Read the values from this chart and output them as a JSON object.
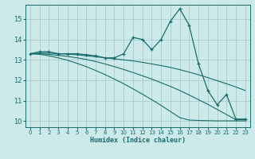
{
  "xlabel": "Humidex (Indice chaleur)",
  "bg_color": "#cceaea",
  "grid_color": "#aacccc",
  "line_color": "#1a6b6b",
  "xlim": [
    -0.5,
    23.5
  ],
  "ylim": [
    9.7,
    15.7
  ],
  "x": [
    0,
    1,
    2,
    3,
    4,
    5,
    6,
    7,
    8,
    9,
    10,
    11,
    12,
    13,
    14,
    15,
    16,
    17,
    18,
    19,
    20,
    21,
    22,
    23
  ],
  "y_main": [
    13.3,
    13.4,
    13.4,
    13.3,
    13.3,
    13.3,
    13.25,
    13.2,
    13.1,
    13.1,
    13.3,
    14.1,
    14.0,
    13.5,
    14.0,
    14.9,
    15.5,
    14.7,
    12.8,
    11.5,
    10.8,
    11.3,
    10.1,
    10.1
  ],
  "y_line2": [
    13.3,
    13.33,
    13.33,
    13.3,
    13.28,
    13.25,
    13.2,
    13.15,
    13.1,
    13.05,
    13.0,
    12.95,
    12.88,
    12.8,
    12.72,
    12.63,
    12.52,
    12.4,
    12.27,
    12.13,
    11.98,
    11.83,
    11.67,
    11.5
  ],
  "y_line3": [
    13.3,
    13.3,
    13.27,
    13.22,
    13.17,
    13.1,
    13.02,
    12.92,
    12.8,
    12.67,
    12.53,
    12.38,
    12.22,
    12.06,
    11.88,
    11.7,
    11.5,
    11.28,
    11.05,
    10.82,
    10.57,
    10.32,
    10.07,
    10.07
  ],
  "y_line4": [
    13.3,
    13.27,
    13.2,
    13.1,
    12.98,
    12.83,
    12.67,
    12.48,
    12.28,
    12.06,
    11.83,
    11.58,
    11.32,
    11.05,
    10.77,
    10.47,
    10.17,
    10.05,
    10.03,
    10.02,
    10.01,
    10.01,
    10.01,
    10.01
  ],
  "yticks": [
    10,
    11,
    12,
    13,
    14,
    15
  ],
  "xticks": [
    0,
    1,
    2,
    3,
    4,
    5,
    6,
    7,
    8,
    9,
    10,
    11,
    12,
    13,
    14,
    15,
    16,
    17,
    18,
    19,
    20,
    21,
    22,
    23
  ]
}
